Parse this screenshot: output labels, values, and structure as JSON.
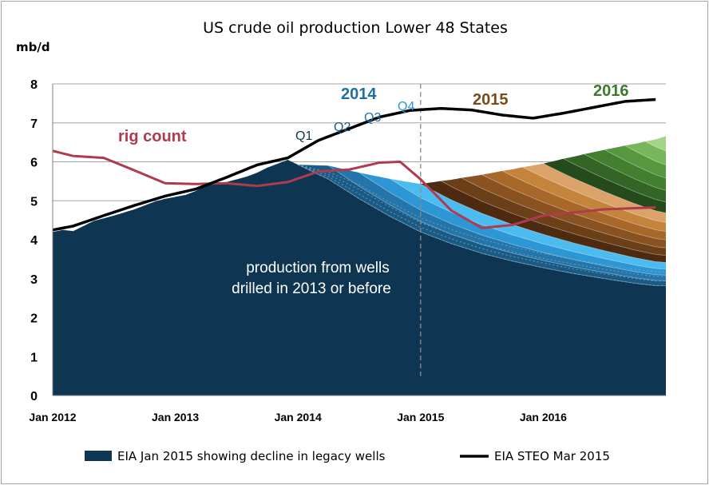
{
  "chart_data": {
    "type": "area",
    "title": "US crude oil production  Lower 48 States",
    "ylabel": "mb/d",
    "ylim": [
      0,
      8
    ],
    "yticks": [
      "0",
      "1",
      "2",
      "3",
      "4",
      "5",
      "6",
      "7",
      "8"
    ],
    "xlim": [
      "2012-01",
      "2016-12"
    ],
    "xticks": [
      {
        "label": "Jan 2012",
        "x": "2012-01"
      },
      {
        "label": "Jan 2013",
        "x": "2013-01"
      },
      {
        "label": "Jan 2014",
        "x": "2014-01"
      },
      {
        "label": "Jan 2015",
        "x": "2015-01"
      },
      {
        "label": "Jan 2016",
        "x": "2016-01"
      }
    ],
    "grid": true,
    "legend_placement": "bottom",
    "legend": [
      {
        "name": "EIA Jan 2015 showing decline in legacy wells",
        "color": "#0e3652"
      },
      {
        "name": "EIA STEO  Mar 2015",
        "color": "#000000"
      }
    ],
    "annotations": {
      "legacy_label_line1": "production  from wells",
      "legacy_label_line2": "drilled in 2013  or before",
      "rig_count": "rig count",
      "year_2014": "2014",
      "year_2015": "2015",
      "year_2016": "2016",
      "q1": "Q1",
      "q2": "Q2",
      "q3": "Q3",
      "q4": "Q4"
    },
    "colors": {
      "legacy": "#0e3652",
      "q1_2014": "#1a5b86",
      "q2_2014": "#2375aa",
      "q3_2014": "#2d96d4",
      "q4_2014": "#4bbbf0",
      "cohorts_2015": [
        "#4d2a10",
        "#6b3f18",
        "#8a5220",
        "#a8682a",
        "#c4843c",
        "#dba36a"
      ],
      "cohorts_2016": [
        "#254a1c",
        "#336626",
        "#42802f",
        "#57983e",
        "#78b65c",
        "#a4d487"
      ],
      "rig": "#b03a4e",
      "steo": "#000000",
      "forecast_divider": "#8c8c8c"
    },
    "legacy_history": {
      "x": [
        "2012-01",
        "2012-02",
        "2012-03",
        "2012-04",
        "2012-05",
        "2012-06",
        "2012-07",
        "2012-08",
        "2012-09",
        "2012-10",
        "2012-11",
        "2012-12",
        "2013-01",
        "2013-02",
        "2013-03",
        "2013-04",
        "2013-05",
        "2013-06",
        "2013-07",
        "2013-08",
        "2013-09",
        "2013-10",
        "2013-11",
        "2013-12"
      ],
      "y": [
        4.2,
        4.25,
        4.22,
        4.35,
        4.48,
        4.55,
        4.62,
        4.7,
        4.78,
        4.88,
        4.98,
        5.05,
        5.1,
        5.15,
        5.25,
        5.4,
        5.45,
        5.48,
        5.55,
        5.62,
        5.72,
        5.85,
        5.95,
        6.05
      ]
    },
    "legacy_decline": {
      "x": [
        "2014-01",
        "2014-04",
        "2014-07",
        "2014-10",
        "2015-01",
        "2015-04",
        "2015-07",
        "2015-10",
        "2016-01",
        "2016-04",
        "2016-07",
        "2016-10",
        "2016-12"
      ],
      "y": [
        6.05,
        5.55,
        5.05,
        4.6,
        4.2,
        3.9,
        3.65,
        3.45,
        3.28,
        3.13,
        3.0,
        2.88,
        2.82
      ]
    },
    "cohorts_2014_peak": [
      0.35,
      0.35,
      0.35,
      0.35
    ],
    "cohorts_2015_peak": [
      0.35,
      0.35,
      0.35,
      0.35,
      0.35,
      0.35
    ],
    "cohorts_2016_peak": [
      0.38,
      0.38,
      0.38,
      0.38,
      0.38,
      0.38
    ],
    "steo": {
      "x": [
        "2012-01",
        "2012-03",
        "2012-06",
        "2012-09",
        "2012-12",
        "2013-03",
        "2013-06",
        "2013-09",
        "2013-12",
        "2014-03",
        "2014-06",
        "2014-09",
        "2014-12",
        "2015-03",
        "2015-06",
        "2015-09",
        "2015-12",
        "2016-03",
        "2016-06",
        "2016-09",
        "2016-12"
      ],
      "y": [
        4.25,
        4.35,
        4.62,
        4.88,
        5.12,
        5.3,
        5.6,
        5.92,
        6.1,
        6.55,
        6.85,
        7.15,
        7.32,
        7.37,
        7.33,
        7.2,
        7.12,
        7.25,
        7.4,
        7.55,
        7.6
      ]
    },
    "rig_count": {
      "x": [
        "2012-01",
        "2012-03",
        "2012-06",
        "2012-09",
        "2012-12",
        "2013-03",
        "2013-06",
        "2013-09",
        "2013-12",
        "2014-03",
        "2014-06",
        "2014-09",
        "2014-11",
        "2015-01",
        "2015-04",
        "2015-07",
        "2015-10",
        "2016-01",
        "2016-04",
        "2016-07",
        "2016-12"
      ],
      "y": [
        6.28,
        6.15,
        6.1,
        5.78,
        5.45,
        5.43,
        5.45,
        5.38,
        5.48,
        5.75,
        5.8,
        5.98,
        6.0,
        5.55,
        4.75,
        4.3,
        4.38,
        4.62,
        4.7,
        4.78,
        4.83
      ]
    }
  }
}
